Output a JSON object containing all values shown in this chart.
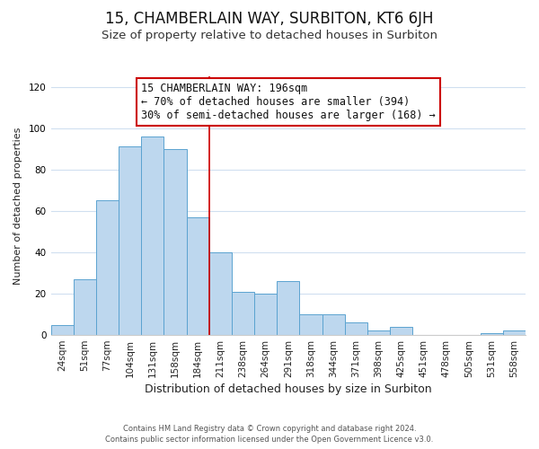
{
  "title": "15, CHAMBERLAIN WAY, SURBITON, KT6 6JH",
  "subtitle": "Size of property relative to detached houses in Surbiton",
  "xlabel": "Distribution of detached houses by size in Surbiton",
  "ylabel": "Number of detached properties",
  "bar_labels": [
    "24sqm",
    "51sqm",
    "77sqm",
    "104sqm",
    "131sqm",
    "158sqm",
    "184sqm",
    "211sqm",
    "238sqm",
    "264sqm",
    "291sqm",
    "318sqm",
    "344sqm",
    "371sqm",
    "398sqm",
    "425sqm",
    "451sqm",
    "478sqm",
    "505sqm",
    "531sqm",
    "558sqm"
  ],
  "bar_values": [
    5,
    27,
    65,
    91,
    96,
    90,
    57,
    40,
    21,
    20,
    26,
    10,
    10,
    6,
    2,
    4,
    0,
    0,
    0,
    1,
    2
  ],
  "bar_color": "#bdd7ee",
  "bar_edge_color": "#5ba3d0",
  "grid_color": "#d0dff0",
  "vline_color": "#cc0000",
  "annotation_title": "15 CHAMBERLAIN WAY: 196sqm",
  "annotation_line1": "← 70% of detached houses are smaller (394)",
  "annotation_line2": "30% of semi-detached houses are larger (168) →",
  "annotation_box_color": "#ffffff",
  "annotation_box_edge_color": "#cc0000",
  "ylim": [
    0,
    125
  ],
  "footer1": "Contains HM Land Registry data © Crown copyright and database right 2024.",
  "footer2": "Contains public sector information licensed under the Open Government Licence v3.0.",
  "background_color": "#ffffff",
  "title_fontsize": 12,
  "subtitle_fontsize": 9.5,
  "xlabel_fontsize": 9,
  "ylabel_fontsize": 8,
  "tick_fontsize": 7.5,
  "annotation_fontsize": 8.5,
  "footer_fontsize": 6,
  "vline_bar_index": 6
}
